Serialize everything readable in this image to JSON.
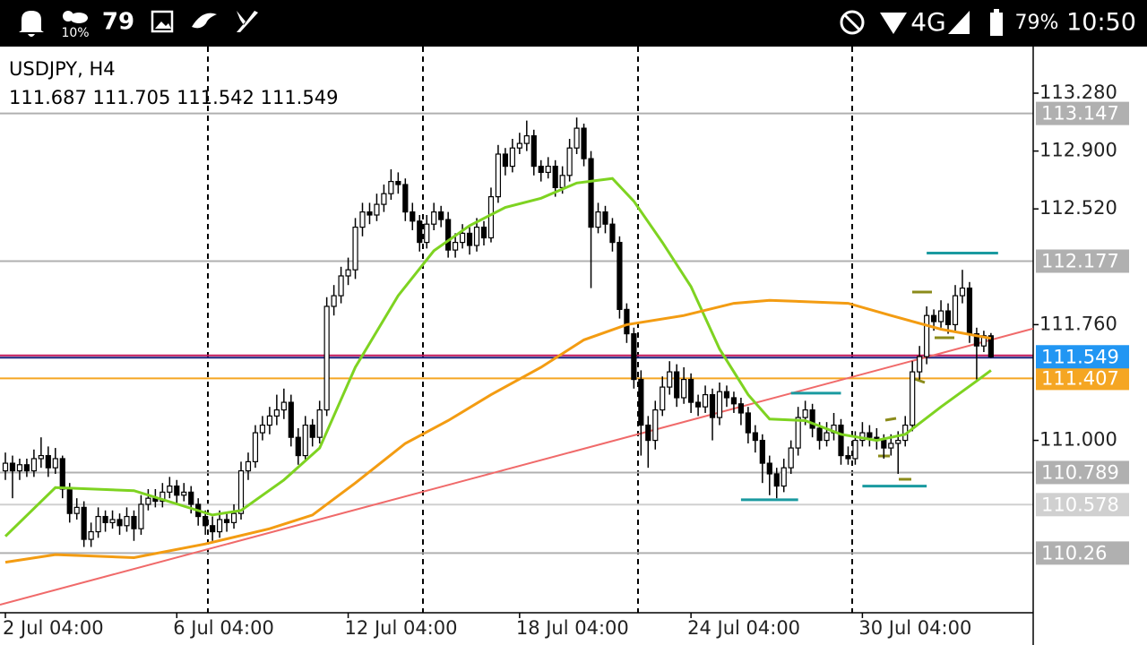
{
  "status_bar": {
    "weather": "10%",
    "notifications": "79",
    "network": "4G",
    "battery": "79%",
    "time": "10:50"
  },
  "chart_data": {
    "type": "candlestick",
    "title": "USDJPY, H4",
    "ylim": [
      109.868,
      113.586
    ],
    "yticks": [
      {
        "value": 113.28,
        "label": "113.280"
      },
      {
        "value": 112.9,
        "label": "112.900"
      },
      {
        "value": 112.52,
        "label": "112.520"
      },
      {
        "value": 111.76,
        "label": "111.760"
      },
      {
        "value": 111,
        "label": "111.000"
      }
    ],
    "xticks": [
      {
        "value": 0,
        "label": "2 Jul 04:00"
      },
      {
        "value": 24,
        "label": "6 Jul 04:00"
      },
      {
        "value": 48,
        "label": "12 Jul 04:00"
      },
      {
        "value": 72,
        "label": "18 Jul 04:00"
      },
      {
        "value": 96,
        "label": "24 Jul 04:00"
      },
      {
        "value": 120,
        "label": "30 Jul 04:00"
      }
    ],
    "bid_color": "#2196f3",
    "levels": [
      {
        "value": 113.147,
        "color": "#b0b0b0"
      },
      {
        "value": 112.177,
        "color": "#b0b0b0"
      },
      {
        "value": 111.407,
        "color": "#f5a623"
      },
      {
        "value": 110.789,
        "color": "#b0b0b0"
      },
      {
        "value": 110.578,
        "color": "#d0d0d0"
      },
      {
        "value": 110.26,
        "color": "#b0b0b0"
      }
    ],
    "series": [
      {
        "color": "#7ed321",
        "x": [
          0,
          7,
          18,
          29,
          33,
          39,
          44,
          49,
          55,
          60,
          65,
          70,
          75,
          80,
          85,
          88,
          92,
          96,
          100,
          104,
          107,
          112,
          117,
          122,
          126,
          131,
          136,
          138
        ],
        "values": [
          110.37,
          110.69,
          110.67,
          110.51,
          110.54,
          110.74,
          110.95,
          111.48,
          111.95,
          112.245,
          112.41,
          112.53,
          112.59,
          112.69,
          112.72,
          112.57,
          112.3,
          112.01,
          111.6,
          111.3,
          111.14,
          111.13,
          111.04,
          111,
          111.04,
          111.22,
          111.39,
          111.46
        ]
      },
      {
        "color": "#f39c12",
        "x": [
          0,
          7,
          18,
          28,
          37,
          43,
          49,
          56,
          62,
          68,
          75,
          81,
          87,
          95,
          102,
          107,
          118,
          124,
          131,
          138
        ],
        "values": [
          110.2,
          110.25,
          110.23,
          110.32,
          110.42,
          110.51,
          110.72,
          110.98,
          111.13,
          111.3,
          111.48,
          111.66,
          111.76,
          111.82,
          111.9,
          111.92,
          111.9,
          111.82,
          111.73,
          111.67
        ]
      }
    ],
    "trendline": {
      "color": "#f06a6a",
      "x": [
        0,
        138
      ],
      "values": [
        109.93,
        111.66
      ]
    },
    "markers": {
      "color": "#1a9aa0",
      "segments": [
        [
          129,
          139,
          112.23
        ],
        [
          110,
          117,
          111.31
        ],
        [
          103,
          111,
          110.61
        ],
        [
          120,
          129,
          110.7
        ]
      ]
    },
    "candles": [
      [
        110.8,
        110.92,
        110.74,
        110.85
      ],
      [
        110.85,
        110.9,
        110.62,
        110.8
      ],
      [
        110.8,
        110.88,
        110.74,
        110.84
      ],
      [
        110.84,
        110.88,
        110.76,
        110.8
      ],
      [
        110.8,
        110.94,
        110.76,
        110.88
      ],
      [
        110.88,
        111.02,
        110.82,
        110.9
      ],
      [
        110.9,
        110.96,
        110.76,
        110.82
      ],
      [
        110.82,
        110.95,
        110.78,
        110.88
      ],
      [
        110.88,
        110.9,
        110.62,
        110.68
      ],
      [
        110.68,
        110.72,
        110.46,
        110.52
      ],
      [
        110.52,
        110.62,
        110.48,
        110.56
      ],
      [
        110.56,
        110.6,
        110.3,
        110.35
      ],
      [
        110.35,
        110.46,
        110.3,
        110.4
      ],
      [
        110.4,
        110.56,
        110.36,
        110.5
      ],
      [
        110.5,
        110.54,
        110.4,
        110.46
      ],
      [
        110.46,
        110.54,
        110.42,
        110.48
      ],
      [
        110.48,
        110.52,
        110.38,
        110.44
      ],
      [
        110.44,
        110.56,
        110.4,
        110.5
      ],
      [
        110.5,
        110.54,
        110.34,
        110.42
      ],
      [
        110.42,
        110.64,
        110.38,
        110.58
      ],
      [
        110.58,
        110.68,
        110.54,
        110.62
      ],
      [
        110.62,
        110.68,
        110.56,
        110.6
      ],
      [
        110.6,
        110.72,
        110.56,
        110.66
      ],
      [
        110.66,
        110.76,
        110.62,
        110.7
      ],
      [
        110.7,
        110.74,
        110.58,
        110.64
      ],
      [
        110.64,
        110.72,
        110.6,
        110.66
      ],
      [
        110.66,
        110.7,
        110.52,
        110.58
      ],
      [
        110.58,
        110.62,
        110.44,
        110.5
      ],
      [
        110.5,
        110.54,
        110.38,
        110.44
      ],
      [
        110.44,
        110.5,
        110.34,
        110.4
      ],
      [
        110.4,
        110.54,
        110.36,
        110.48
      ],
      [
        110.48,
        110.52,
        110.4,
        110.46
      ],
      [
        110.46,
        110.58,
        110.42,
        110.52
      ],
      [
        110.52,
        110.86,
        110.48,
        110.8
      ],
      [
        110.8,
        110.92,
        110.74,
        110.86
      ],
      [
        110.86,
        111.1,
        110.82,
        111.05
      ],
      [
        111.05,
        111.16,
        111.0,
        111.1
      ],
      [
        111.1,
        111.22,
        111.04,
        111.16
      ],
      [
        111.16,
        111.3,
        111.1,
        111.2
      ],
      [
        111.2,
        111.34,
        111.14,
        111.25
      ],
      [
        111.25,
        111.3,
        110.96,
        111.02
      ],
      [
        111.02,
        111.08,
        110.84,
        110.9
      ],
      [
        110.9,
        111.16,
        110.86,
        111.1
      ],
      [
        111.1,
        111.14,
        110.96,
        111.02
      ],
      [
        111.02,
        111.26,
        110.98,
        111.2
      ],
      [
        111.2,
        111.94,
        111.16,
        111.88
      ],
      [
        111.88,
        112.02,
        111.82,
        111.95
      ],
      [
        111.95,
        112.14,
        111.9,
        112.08
      ],
      [
        112.08,
        112.2,
        112.02,
        112.12
      ],
      [
        112.12,
        112.46,
        112.06,
        112.4
      ],
      [
        112.4,
        112.56,
        112.34,
        112.5
      ],
      [
        112.5,
        112.56,
        112.42,
        112.48
      ],
      [
        112.48,
        112.62,
        112.44,
        112.55
      ],
      [
        112.55,
        112.68,
        112.5,
        112.62
      ],
      [
        112.62,
        112.78,
        112.58,
        112.7
      ],
      [
        112.7,
        112.76,
        112.62,
        112.68
      ],
      [
        112.68,
        112.72,
        112.44,
        112.5
      ],
      [
        112.5,
        112.56,
        112.38,
        112.44
      ],
      [
        112.44,
        112.48,
        112.24,
        112.3
      ],
      [
        112.3,
        112.48,
        112.26,
        112.42
      ],
      [
        112.42,
        112.56,
        112.38,
        112.5
      ],
      [
        112.5,
        112.54,
        112.4,
        112.45
      ],
      [
        112.45,
        112.5,
        112.2,
        112.25
      ],
      [
        112.25,
        112.36,
        112.2,
        112.3
      ],
      [
        112.3,
        112.42,
        112.26,
        112.36
      ],
      [
        112.36,
        112.4,
        112.22,
        112.28
      ],
      [
        112.28,
        112.46,
        112.24,
        112.4
      ],
      [
        112.4,
        112.44,
        112.28,
        112.33
      ],
      [
        112.33,
        112.66,
        112.3,
        112.6
      ],
      [
        112.6,
        112.94,
        112.56,
        112.88
      ],
      [
        112.88,
        112.92,
        112.74,
        112.8
      ],
      [
        112.8,
        112.98,
        112.76,
        112.92
      ],
      [
        112.92,
        113.02,
        112.88,
        112.95
      ],
      [
        112.95,
        113.1,
        112.9,
        113.0
      ],
      [
        113.0,
        113.04,
        112.74,
        112.8
      ],
      [
        112.8,
        112.84,
        112.7,
        112.76
      ],
      [
        112.76,
        112.86,
        112.72,
        112.8
      ],
      [
        112.8,
        112.84,
        112.6,
        112.66
      ],
      [
        112.66,
        112.8,
        112.62,
        112.74
      ],
      [
        112.74,
        112.98,
        112.7,
        112.92
      ],
      [
        112.92,
        113.12,
        112.88,
        113.05
      ],
      [
        113.05,
        113.08,
        112.8,
        112.85
      ],
      [
        112.85,
        112.9,
        112.0,
        112.4
      ],
      [
        112.4,
        112.56,
        112.36,
        112.5
      ],
      [
        112.5,
        112.54,
        112.36,
        112.42
      ],
      [
        112.42,
        112.46,
        112.24,
        112.3
      ],
      [
        112.3,
        112.34,
        111.8,
        111.86
      ],
      [
        111.86,
        111.9,
        111.64,
        111.7
      ],
      [
        111.7,
        111.74,
        111.34,
        111.4
      ],
      [
        111.4,
        111.46,
        110.9,
        111.1
      ],
      [
        111.1,
        111.16,
        110.82,
        111.0
      ],
      [
        111.0,
        111.26,
        110.94,
        111.2
      ],
      [
        111.2,
        111.42,
        111.16,
        111.35
      ],
      [
        111.35,
        111.52,
        111.3,
        111.45
      ],
      [
        111.45,
        111.5,
        111.22,
        111.28
      ],
      [
        111.28,
        111.48,
        111.24,
        111.4
      ],
      [
        111.4,
        111.44,
        111.18,
        111.25
      ],
      [
        111.25,
        111.3,
        111.16,
        111.22
      ],
      [
        111.22,
        111.36,
        111.18,
        111.3
      ],
      [
        111.3,
        111.34,
        111.0,
        111.15
      ],
      [
        111.15,
        111.38,
        111.1,
        111.32
      ],
      [
        111.32,
        111.36,
        111.22,
        111.28
      ],
      [
        111.28,
        111.32,
        111.18,
        111.24
      ],
      [
        111.24,
        111.28,
        111.1,
        111.18
      ],
      [
        111.18,
        111.22,
        110.98,
        111.05
      ],
      [
        111.05,
        111.1,
        110.92,
        111.0
      ],
      [
        111.0,
        111.04,
        110.72,
        110.85
      ],
      [
        110.85,
        110.9,
        110.64,
        110.78
      ],
      [
        110.78,
        110.82,
        110.62,
        110.7
      ],
      [
        110.7,
        110.88,
        110.66,
        110.82
      ],
      [
        110.82,
        111.0,
        110.78,
        110.95
      ],
      [
        110.95,
        111.22,
        110.9,
        111.15
      ],
      [
        111.15,
        111.26,
        111.1,
        111.2
      ],
      [
        111.2,
        111.24,
        111.02,
        111.08
      ],
      [
        111.08,
        111.12,
        110.94,
        111.0
      ],
      [
        111.0,
        111.12,
        110.96,
        111.05
      ],
      [
        111.05,
        111.18,
        111.0,
        111.1
      ],
      [
        111.1,
        111.14,
        110.84,
        110.9
      ],
      [
        110.9,
        110.96,
        110.84,
        110.88
      ],
      [
        110.88,
        111.06,
        110.84,
        111.0
      ],
      [
        111.0,
        111.12,
        110.96,
        111.05
      ],
      [
        111.05,
        111.1,
        110.96,
        111.02
      ],
      [
        111.02,
        111.08,
        110.94,
        111.0
      ],
      [
        111.0,
        111.04,
        110.88,
        110.95
      ],
      [
        110.95,
        111.04,
        110.9,
        110.98
      ],
      [
        110.98,
        111.06,
        110.78,
        111.0
      ],
      [
        111.0,
        111.16,
        110.96,
        111.1
      ],
      [
        111.1,
        111.52,
        111.06,
        111.45
      ],
      [
        111.45,
        111.62,
        111.4,
        111.55
      ],
      [
        111.55,
        111.88,
        111.5,
        111.82
      ],
      [
        111.82,
        111.86,
        111.72,
        111.78
      ],
      [
        111.78,
        111.92,
        111.74,
        111.85
      ],
      [
        111.85,
        111.9,
        111.7,
        111.76
      ],
      [
        111.76,
        112.02,
        111.72,
        111.95
      ],
      [
        111.95,
        112.12,
        111.9,
        112.0
      ],
      [
        112.0,
        112.04,
        111.64,
        111.7
      ],
      [
        111.7,
        111.74,
        111.4,
        111.62
      ],
      [
        111.62,
        111.72,
        111.58,
        111.687
      ],
      [
        111.687,
        111.705,
        111.542,
        111.549
      ]
    ]
  }
}
